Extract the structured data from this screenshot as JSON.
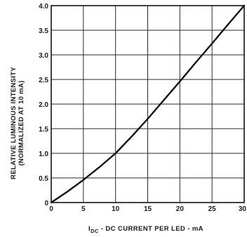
{
  "chart_data": {
    "type": "line",
    "title": "",
    "xlabel_symbol": "I",
    "xlabel_subscript": "DC",
    "xlabel_rest": " - DC CURRENT PER LED - mA",
    "ylabel_line1": "RELATIVE LUMINOUS INTENSITY",
    "ylabel_line2": "(NORMALIZED AT 10 mA)",
    "xlim": [
      0,
      30
    ],
    "ylim": [
      0,
      4.0
    ],
    "x_ticks": [
      "0",
      "5",
      "10",
      "15",
      "20",
      "25",
      "30"
    ],
    "y_ticks": [
      "0",
      "0.5",
      "1.0",
      "1.5",
      "2.0",
      "2.5",
      "3.0",
      "3.5",
      "4.0"
    ],
    "grid": true,
    "series": [
      {
        "x": [
          0,
          2.5,
          5,
          7.5,
          10,
          12.5,
          15,
          17.5,
          20,
          22.5,
          25,
          27.5,
          30
        ],
        "y": [
          0,
          0.22,
          0.46,
          0.72,
          1.0,
          1.34,
          1.7,
          2.08,
          2.46,
          2.85,
          3.23,
          3.62,
          4.0
        ]
      }
    ],
    "colors": {
      "line": "#111111",
      "grid": "#2a2a2a",
      "axis": "#111111"
    }
  }
}
